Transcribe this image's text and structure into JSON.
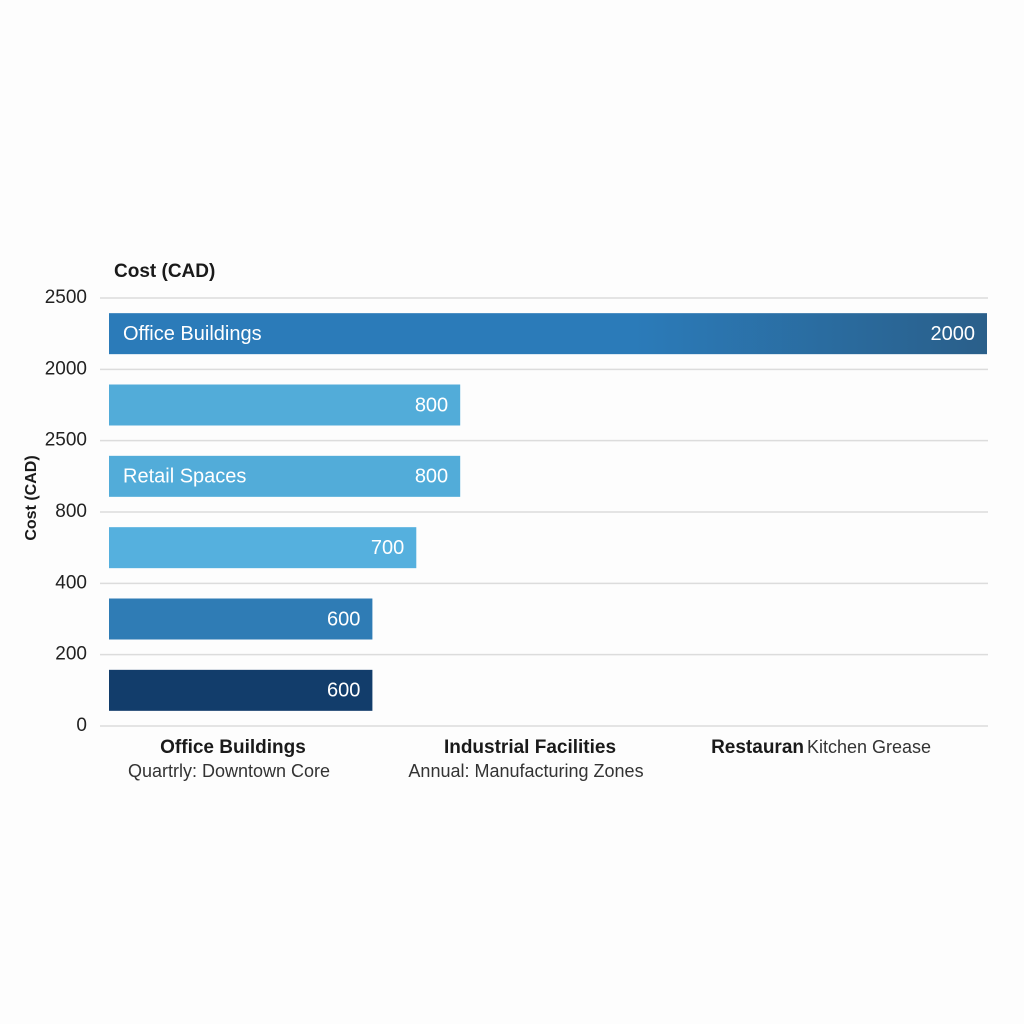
{
  "chart_data": {
    "type": "bar",
    "orientation": "horizontal",
    "title": "Cost (CAD)",
    "y_label": "Cost (CAD)",
    "row_labels": [
      "2500",
      "2000",
      "2500",
      "800",
      "400",
      "200",
      "0"
    ],
    "categories": [
      "Office Buildings",
      null,
      "Retail Spaces",
      null,
      null,
      null
    ],
    "values": [
      2000,
      800,
      800,
      700,
      600,
      600
    ],
    "colors": [
      "#2b7bb9",
      "#52acd9",
      "#52acd9",
      "#55b0de",
      "#2f7cb5",
      "#123d6b"
    ],
    "xlim": [
      0,
      2000
    ],
    "grid": true,
    "x_groups": [
      {
        "name": "Office Buildings",
        "detail": "Quartrly: Downtown Core"
      },
      {
        "name": "Industrial Facilities",
        "detail": "Annual: Manufacturing Zones"
      },
      {
        "name": "Restauran",
        "detail": "Kitchen Grease"
      }
    ]
  }
}
